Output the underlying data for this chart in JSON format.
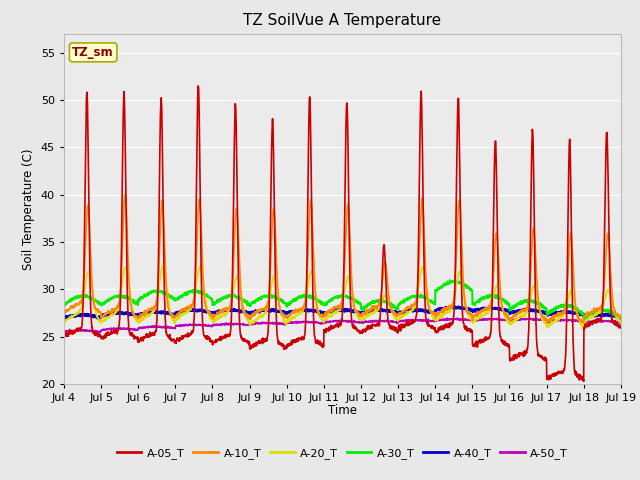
{
  "title": "TZ SoilVue A Temperature",
  "ylabel": "Soil Temperature (C)",
  "xlabel": "Time",
  "annotation_text": "TZ_sm",
  "annotation_color": "#8B0000",
  "annotation_bg": "#FFFFCC",
  "annotation_border": "#AAAA00",
  "ylim": [
    20,
    57
  ],
  "yticks": [
    20,
    25,
    30,
    35,
    40,
    45,
    50,
    55
  ],
  "x_labels": [
    "Jul 4",
    "Jul 5",
    "Jul 6",
    "Jul 7",
    "Jul 8",
    "Jul 9",
    "Jul 10",
    "Jul 11",
    "Jul 12",
    "Jul 13",
    "Jul 14",
    "Jul 15",
    "Jul 16",
    "Jul 17",
    "Jul 18",
    "Jul 19"
  ],
  "fig_bg_color": "#E8E8E8",
  "plot_bg": "#EBEBEB",
  "grid_color": "#FFFFFF",
  "series": {
    "A-05_T": {
      "color": "#CC0000",
      "lw": 1.2
    },
    "A-10_T": {
      "color": "#FF8800",
      "lw": 1.2
    },
    "A-20_T": {
      "color": "#DDDD00",
      "lw": 1.2
    },
    "A-30_T": {
      "color": "#00EE00",
      "lw": 1.5
    },
    "A-40_T": {
      "color": "#0000CC",
      "lw": 1.8
    },
    "A-50_T": {
      "color": "#BB00BB",
      "lw": 1.2
    }
  },
  "legend_order": [
    "A-05_T",
    "A-10_T",
    "A-20_T",
    "A-30_T",
    "A-40_T",
    "A-50_T"
  ],
  "day_peaks_05": [
    50.0,
    50.0,
    49.5,
    51.0,
    48.8,
    47.2,
    49.5,
    49.0,
    34.0,
    50.0,
    49.5,
    45.0,
    46.0,
    45.0,
    46.0
  ],
  "day_troughs_05": [
    25.0,
    24.8,
    24.5,
    24.5,
    24.3,
    23.8,
    24.0,
    25.5,
    25.5,
    25.8,
    25.5,
    24.0,
    22.5,
    20.5,
    26.0
  ],
  "day_peaks_10": [
    38.0,
    39.0,
    38.5,
    38.5,
    37.5,
    37.5,
    38.5,
    38.0,
    32.0,
    38.5,
    38.5,
    35.0,
    35.5,
    35.0,
    35.0
  ],
  "day_troughs_10": [
    27.5,
    27.0,
    27.0,
    27.2,
    27.0,
    27.0,
    27.0,
    27.2,
    27.2,
    27.3,
    27.2,
    27.0,
    26.8,
    26.5,
    27.0
  ],
  "day_peaks_20": [
    31.0,
    31.5,
    31.5,
    31.5,
    30.5,
    30.5,
    31.0,
    30.5,
    28.5,
    31.5,
    31.0,
    29.5,
    29.5,
    29.0,
    29.0
  ],
  "day_troughs_20": [
    26.5,
    26.5,
    26.5,
    26.8,
    26.5,
    26.3,
    26.5,
    26.7,
    26.7,
    26.8,
    26.7,
    26.5,
    26.3,
    26.0,
    26.5
  ],
  "green_base": [
    28.5,
    28.5,
    29.0,
    29.0,
    28.5,
    28.5,
    28.5,
    28.5,
    28.0,
    28.5,
    30.0,
    28.5,
    28.0,
    27.5,
    27.0
  ],
  "blue_base": [
    27.0,
    27.2,
    27.3,
    27.5,
    27.5,
    27.5,
    27.5,
    27.5,
    27.5,
    27.5,
    27.8,
    27.7,
    27.5,
    27.3,
    27.0
  ],
  "purple_base": [
    25.5,
    25.7,
    25.9,
    26.1,
    26.2,
    26.3,
    26.4,
    26.5,
    26.5,
    26.6,
    26.7,
    26.7,
    26.7,
    26.6,
    26.5
  ]
}
